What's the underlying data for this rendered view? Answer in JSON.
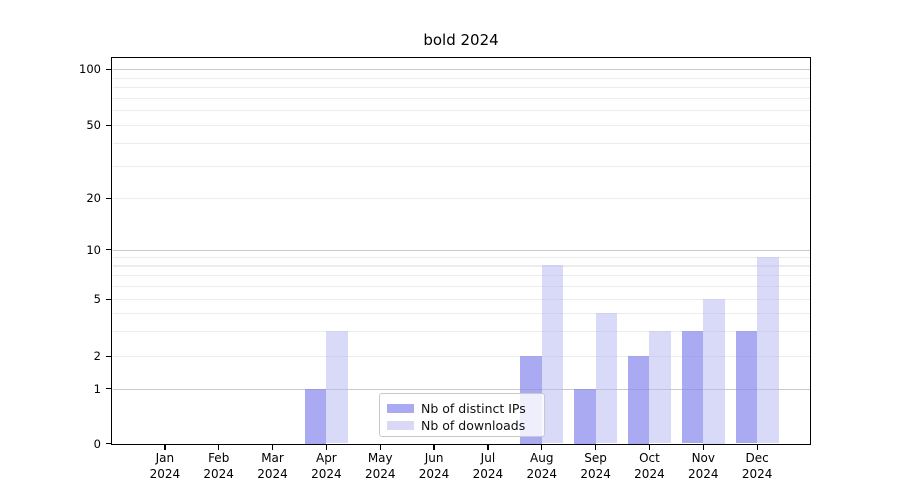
{
  "chart_data": {
    "type": "bar",
    "title": "bold 2024",
    "categories": [
      "Jan 2024",
      "Feb 2024",
      "Mar 2024",
      "Apr 2024",
      "May 2024",
      "Jun 2024",
      "Jul 2024",
      "Aug 2024",
      "Sep 2024",
      "Oct 2024",
      "Nov 2024",
      "Dec 2024"
    ],
    "months": [
      "Jan",
      "Feb",
      "Mar",
      "Apr",
      "May",
      "Jun",
      "Jul",
      "Aug",
      "Sep",
      "Oct",
      "Nov",
      "Dec"
    ],
    "year": "2024",
    "series": [
      {
        "name": "Nb of distinct IPs",
        "color": "#aaaaf3",
        "fill": "rgba(137,137,239,0.72)",
        "values": [
          0,
          0,
          0,
          1,
          0,
          0,
          0,
          2,
          1,
          2,
          3,
          3
        ]
      },
      {
        "name": "Nb of downloads",
        "color": "#d9d9f7",
        "fill": "rgba(183,183,241,0.52)",
        "values": [
          0,
          0,
          0,
          3,
          0,
          0,
          0,
          8,
          4,
          3,
          5,
          9
        ]
      }
    ],
    "xlabel": "",
    "ylabel": "",
    "yscale": "symlog",
    "ylim": [
      0,
      113
    ],
    "ytick_labels": [
      "0",
      "1",
      "2",
      "5",
      "10",
      "20",
      "50",
      "100"
    ],
    "ytick_values": [
      0,
      1,
      2,
      5,
      10,
      20,
      50,
      100
    ],
    "major_gridlines": [
      1,
      10,
      100
    ],
    "minor_gridlines": [
      2,
      3,
      4,
      5,
      6,
      7,
      8,
      9,
      20,
      30,
      40,
      50,
      60,
      70,
      80,
      90
    ],
    "grid": true,
    "legend_position": "lower center",
    "legend_entries": [
      "Nb of distinct IPs",
      "Nb of downloads"
    ]
  },
  "colors": {
    "axis": "#000000",
    "major_grid": "#cacaca",
    "minor_grid": "#ececec",
    "legend_border": "#c9c9c9"
  }
}
